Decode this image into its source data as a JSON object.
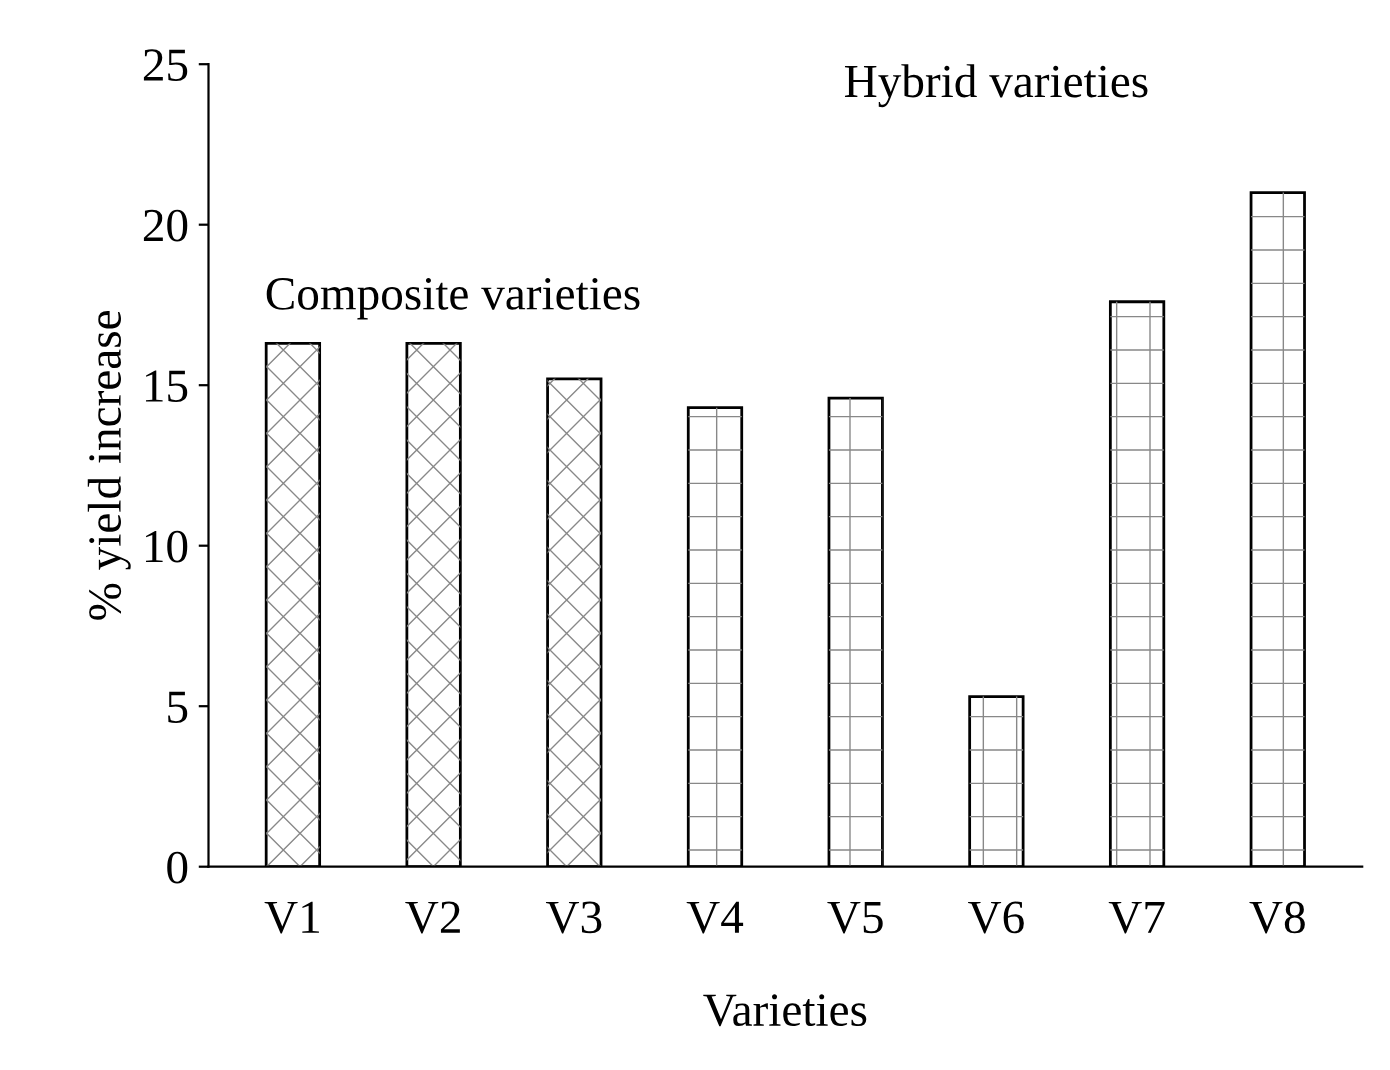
{
  "chart_data": {
    "type": "bar",
    "xlabel": "Varieties",
    "ylabel": "% yield increase",
    "categories": [
      "V1",
      "V2",
      "V3",
      "V4",
      "V5",
      "V6",
      "V7",
      "V8"
    ],
    "series": [
      {
        "name": "Composite varieties",
        "color": "#ffffff",
        "values": [
          16.3,
          16.3,
          15.2,
          null,
          null,
          null,
          null,
          null
        ]
      },
      {
        "name": "Hybrid varieties",
        "color": "#ffffff",
        "values": [
          null,
          null,
          null,
          14.3,
          14.6,
          5.3,
          17.6,
          21.0
        ]
      }
    ],
    "ylim": [
      0,
      25
    ],
    "yticks": [
      0,
      5,
      10,
      15,
      20,
      25
    ],
    "grid": false,
    "legend": false
  }
}
